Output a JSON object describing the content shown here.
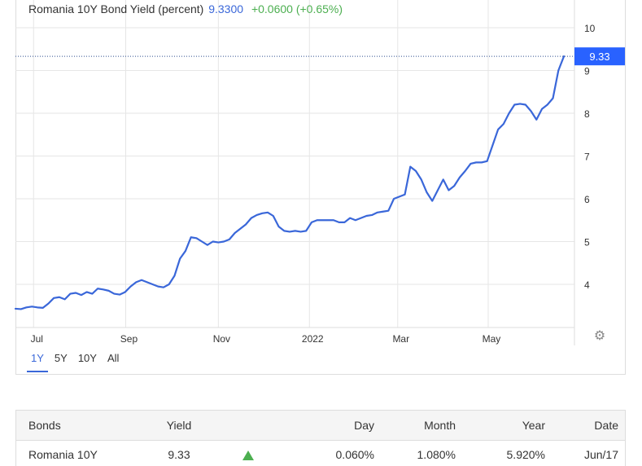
{
  "legend": {
    "name": "Romania 10Y Bond Yield (percent)",
    "price": "9.3300",
    "change": "+0.0600 (+0.65%)"
  },
  "ranges": [
    "1Y",
    "5Y",
    "10Y",
    "All"
  ],
  "active_range": "1Y",
  "icons": {
    "settings": "gear-icon",
    "trend": "up-triangle-icon"
  },
  "colors": {
    "line": "#3a67d9",
    "last_badge": "#2962ff",
    "up": "#4caf50"
  },
  "chart_data": {
    "type": "line",
    "title": "Romania 10Y Bond Yield (percent)",
    "last_value": 9.33,
    "last_label": "9.33",
    "ylim": [
      3.0,
      10.3
    ],
    "yticks": [
      4,
      5,
      6,
      7,
      8,
      9,
      10
    ],
    "ytick_labels": [
      "4",
      "5",
      "6",
      "7",
      "8",
      "9",
      "10"
    ],
    "xlim": [
      0,
      100
    ],
    "xticks": [
      {
        "label": "Jul",
        "pos": 3.3
      },
      {
        "label": "Sep",
        "pos": 20.1
      },
      {
        "label": "Nov",
        "pos": 37.0
      },
      {
        "label": "2022",
        "pos": 53.6
      },
      {
        "label": "Mar",
        "pos": 69.7
      },
      {
        "label": "May",
        "pos": 86.2
      }
    ],
    "grid": true,
    "series": [
      {
        "values": [
          [
            0.0,
            3.43
          ],
          [
            1.0,
            3.42
          ],
          [
            2.0,
            3.46
          ],
          [
            3.0,
            3.48
          ],
          [
            4.0,
            3.46
          ],
          [
            5.0,
            3.45
          ],
          [
            6.0,
            3.55
          ],
          [
            7.0,
            3.68
          ],
          [
            8.0,
            3.7
          ],
          [
            9.0,
            3.65
          ],
          [
            10.0,
            3.78
          ],
          [
            11.0,
            3.8
          ],
          [
            12.0,
            3.75
          ],
          [
            13.0,
            3.82
          ],
          [
            14.0,
            3.78
          ],
          [
            15.0,
            3.9
          ],
          [
            16.0,
            3.88
          ],
          [
            17.0,
            3.85
          ],
          [
            18.0,
            3.78
          ],
          [
            19.0,
            3.76
          ],
          [
            20.0,
            3.82
          ],
          [
            21.0,
            3.95
          ],
          [
            22.0,
            4.05
          ],
          [
            23.0,
            4.1
          ],
          [
            24.0,
            4.05
          ],
          [
            25.0,
            4.0
          ],
          [
            26.0,
            3.95
          ],
          [
            27.0,
            3.93
          ],
          [
            28.0,
            4.0
          ],
          [
            29.0,
            4.2
          ],
          [
            30.0,
            4.6
          ],
          [
            31.0,
            4.78
          ],
          [
            32.0,
            5.1
          ],
          [
            33.0,
            5.08
          ],
          [
            34.0,
            5.0
          ],
          [
            35.0,
            4.92
          ],
          [
            36.0,
            5.0
          ],
          [
            37.0,
            4.98
          ],
          [
            38.0,
            5.0
          ],
          [
            39.0,
            5.05
          ],
          [
            40.0,
            5.2
          ],
          [
            41.0,
            5.3
          ],
          [
            42.0,
            5.4
          ],
          [
            43.0,
            5.55
          ],
          [
            44.0,
            5.62
          ],
          [
            45.0,
            5.66
          ],
          [
            46.0,
            5.68
          ],
          [
            47.0,
            5.6
          ],
          [
            48.0,
            5.35
          ],
          [
            49.0,
            5.25
          ],
          [
            50.0,
            5.23
          ],
          [
            51.0,
            5.25
          ],
          [
            52.0,
            5.23
          ],
          [
            53.0,
            5.25
          ],
          [
            54.0,
            5.45
          ],
          [
            55.0,
            5.5
          ],
          [
            56.0,
            5.5
          ],
          [
            57.0,
            5.5
          ],
          [
            58.0,
            5.5
          ],
          [
            59.0,
            5.45
          ],
          [
            60.0,
            5.45
          ],
          [
            61.0,
            5.55
          ],
          [
            62.0,
            5.5
          ],
          [
            63.0,
            5.55
          ],
          [
            64.0,
            5.6
          ],
          [
            65.0,
            5.62
          ],
          [
            66.0,
            5.68
          ],
          [
            67.0,
            5.7
          ],
          [
            68.0,
            5.72
          ],
          [
            69.0,
            6.0
          ],
          [
            70.0,
            6.05
          ],
          [
            71.0,
            6.1
          ],
          [
            72.0,
            6.75
          ],
          [
            73.0,
            6.65
          ],
          [
            74.0,
            6.45
          ],
          [
            75.0,
            6.15
          ],
          [
            76.0,
            5.95
          ],
          [
            77.0,
            6.2
          ],
          [
            78.0,
            6.45
          ],
          [
            79.0,
            6.2
          ],
          [
            80.0,
            6.3
          ],
          [
            81.0,
            6.5
          ],
          [
            82.0,
            6.65
          ],
          [
            83.0,
            6.82
          ],
          [
            84.0,
            6.85
          ],
          [
            85.0,
            6.85
          ],
          [
            86.0,
            6.88
          ],
          [
            87.0,
            7.25
          ],
          [
            88.0,
            7.62
          ],
          [
            89.0,
            7.75
          ],
          [
            90.0,
            8.0
          ],
          [
            91.0,
            8.2
          ],
          [
            92.0,
            8.22
          ],
          [
            93.0,
            8.2
          ],
          [
            94.0,
            8.05
          ],
          [
            95.0,
            7.85
          ],
          [
            96.0,
            8.1
          ],
          [
            97.0,
            8.2
          ],
          [
            98.0,
            8.35
          ],
          [
            99.0,
            9.0
          ],
          [
            100.0,
            9.33
          ]
        ]
      }
    ]
  },
  "table": {
    "headers": {
      "bonds": "Bonds",
      "yield": "Yield",
      "day": "Day",
      "month": "Month",
      "year": "Year",
      "date": "Date"
    },
    "rows": [
      {
        "bond": "Romania 10Y",
        "yield": "9.33",
        "trend": "up",
        "day": "0.060%",
        "month": "1.080%",
        "year": "5.920%",
        "date": "Jun/17"
      }
    ]
  }
}
